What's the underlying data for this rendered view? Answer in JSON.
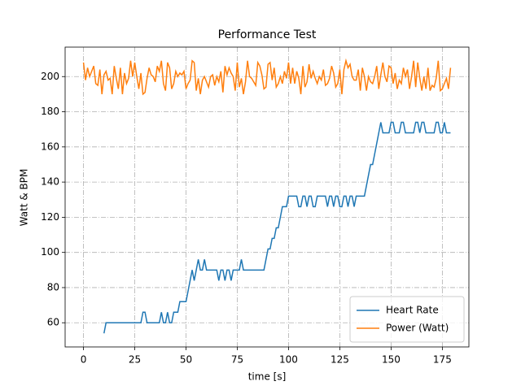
{
  "chart_data": {
    "type": "line",
    "title": "Performance Test",
    "xlabel": "time [s]",
    "ylabel": "Watt & BPM",
    "x": [
      0,
      1,
      2,
      3,
      4,
      5,
      6,
      7,
      8,
      9,
      10,
      11,
      12,
      13,
      14,
      15,
      16,
      17,
      18,
      19,
      20,
      21,
      22,
      23,
      24,
      25,
      26,
      27,
      28,
      29,
      30,
      31,
      32,
      33,
      34,
      35,
      36,
      37,
      38,
      39,
      40,
      41,
      42,
      43,
      44,
      45,
      46,
      47,
      48,
      49,
      50,
      51,
      52,
      53,
      54,
      55,
      56,
      57,
      58,
      59,
      60,
      61,
      62,
      63,
      64,
      65,
      66,
      67,
      68,
      69,
      70,
      71,
      72,
      73,
      74,
      75,
      76,
      77,
      78,
      79,
      80,
      81,
      82,
      83,
      84,
      85,
      86,
      87,
      88,
      89,
      90,
      91,
      92,
      93,
      94,
      95,
      96,
      97,
      98,
      99,
      100,
      101,
      102,
      103,
      104,
      105,
      106,
      107,
      108,
      109,
      110,
      111,
      112,
      113,
      114,
      115,
      116,
      117,
      118,
      119,
      120,
      121,
      122,
      123,
      124,
      125,
      126,
      127,
      128,
      129,
      130,
      131,
      132,
      133,
      134,
      135,
      136,
      137,
      138,
      139,
      140,
      141,
      142,
      143,
      144,
      145,
      146,
      147,
      148,
      149,
      150,
      151,
      152,
      153,
      154,
      155,
      156,
      157,
      158,
      159,
      160,
      161,
      162,
      163,
      164,
      165,
      166,
      167,
      168,
      169,
      170,
      171,
      172,
      173,
      174,
      175,
      176,
      177,
      178,
      179
    ],
    "series": [
      {
        "name": "Heart Rate",
        "color": "#1f77b4",
        "values": [
          null,
          null,
          null,
          null,
          null,
          null,
          null,
          null,
          null,
          null,
          54,
          60,
          60,
          60,
          60,
          60,
          60,
          60,
          60,
          60,
          60,
          60,
          60,
          60,
          60,
          60,
          60,
          60,
          60,
          66,
          66,
          60,
          60,
          60,
          60,
          60,
          60,
          60,
          66,
          60,
          60,
          66,
          60,
          60,
          66,
          66,
          66,
          72,
          72,
          72,
          72,
          78,
          84,
          90,
          84,
          90,
          96,
          90,
          90,
          96,
          90,
          90,
          90,
          90,
          90,
          90,
          84,
          90,
          90,
          84,
          90,
          90,
          84,
          90,
          90,
          90,
          90,
          96,
          90,
          90,
          90,
          90,
          90,
          90,
          90,
          90,
          90,
          90,
          90,
          96,
          102,
          102,
          108,
          108,
          114,
          114,
          120,
          126,
          126,
          126,
          132,
          132,
          132,
          132,
          132,
          126,
          126,
          132,
          132,
          126,
          132,
          132,
          126,
          126,
          132,
          132,
          132,
          132,
          132,
          126,
          132,
          132,
          126,
          132,
          132,
          126,
          126,
          132,
          132,
          126,
          132,
          132,
          126,
          132,
          132,
          132,
          132,
          132,
          138,
          144,
          150,
          150,
          156,
          162,
          168,
          174,
          168,
          168,
          168,
          168,
          174,
          174,
          168,
          168,
          168,
          174,
          174,
          168,
          168,
          168,
          168,
          168,
          174,
          174,
          168,
          174,
          174,
          168,
          168,
          168,
          168,
          168,
          174,
          174,
          168,
          168,
          174,
          168,
          168,
          168
        ]
      },
      {
        "name": "Power (Watt)",
        "color": "#ff7f0e",
        "values": [
          208,
          198,
          205,
          200,
          203,
          206,
          196,
          195,
          204,
          190,
          201,
          203,
          198,
          199,
          190,
          206,
          199,
          193,
          205,
          190,
          202,
          196,
          199,
          209,
          200,
          208,
          200,
          193,
          202,
          190,
          191,
          199,
          205,
          201,
          200,
          197,
          206,
          203,
          209,
          196,
          192,
          208,
          205,
          193,
          196,
          203,
          200,
          202,
          201,
          203,
          193,
          196,
          198,
          209,
          208,
          192,
          199,
          190,
          198,
          200,
          197,
          194,
          200,
          201,
          195,
          200,
          197,
          203,
          191,
          206,
          201,
          205,
          202,
          200,
          192,
          208,
          194,
          199,
          190,
          197,
          209,
          200,
          199,
          197,
          195,
          208,
          206,
          201,
          193,
          194,
          207,
          208,
          198,
          205,
          194,
          196,
          200,
          196,
          203,
          199,
          208,
          196,
          205,
          196,
          203,
          199,
          190,
          206,
          194,
          197,
          207,
          199,
          203,
          199,
          196,
          200,
          198,
          204,
          195,
          196,
          199,
          206,
          202,
          194,
          196,
          204,
          190,
          204,
          209,
          205,
          207,
          200,
          198,
          198,
          204,
          192,
          205,
          200,
          192,
          200,
          197,
          196,
          200,
          206,
          193,
          201,
          208,
          200,
          197,
          206,
          205,
          196,
          202,
          193,
          198,
          196,
          205,
          200,
          204,
          193,
          200,
          209,
          194,
          208,
          199,
          192,
          200,
          193,
          205,
          192,
          195,
          194,
          199,
          209,
          192,
          193,
          196,
          199,
          193,
          205
        ]
      }
    ],
    "xlim": [
      -8.95,
      187.95
    ],
    "ylim": [
      46.25,
      216.75
    ],
    "xticks": [
      0,
      25,
      50,
      75,
      100,
      125,
      150,
      175
    ],
    "yticks": [
      60,
      80,
      100,
      120,
      140,
      160,
      180,
      200
    ],
    "grid": true,
    "legend": "lower right"
  }
}
